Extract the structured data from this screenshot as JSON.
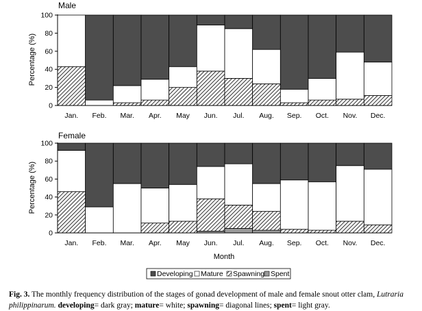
{
  "chart_data": [
    {
      "type": "bar",
      "stacked": true,
      "title": "Male",
      "xlabel": "",
      "ylabel": "Percentage (%)",
      "ylim": [
        0,
        100
      ],
      "yticks": [
        0,
        20,
        40,
        60,
        80,
        100
      ],
      "grid": false,
      "categories": [
        "Jan.",
        "Feb.",
        "Mar.",
        "Apr.",
        "May",
        "Jun.",
        "Jul.",
        "Aug.",
        "Sep.",
        "Oct.",
        "Nov.",
        "Dec."
      ],
      "series": [
        {
          "name": "Spent",
          "values": [
            0,
            0,
            0,
            0,
            0,
            0,
            0,
            0,
            0,
            0,
            0,
            0
          ]
        },
        {
          "name": "Spawning",
          "values": [
            43,
            0,
            3,
            6,
            20,
            38,
            30,
            24,
            3,
            6,
            7,
            11
          ]
        },
        {
          "name": "Mature",
          "values": [
            57,
            6,
            19,
            23,
            23,
            51,
            55,
            38,
            15,
            24,
            52,
            37
          ]
        },
        {
          "name": "Developing",
          "values": [
            0,
            94,
            78,
            71,
            57,
            11,
            15,
            38,
            82,
            70,
            41,
            52
          ]
        }
      ]
    },
    {
      "type": "bar",
      "stacked": true,
      "title": "Female",
      "xlabel": "Month",
      "ylabel": "Percentage (%)",
      "ylim": [
        0,
        100
      ],
      "yticks": [
        0,
        20,
        40,
        60,
        80,
        100
      ],
      "grid": false,
      "categories": [
        "Jan.",
        "Feb.",
        "Mar.",
        "Apr.",
        "May",
        "Jun.",
        "Jul.",
        "Aug.",
        "Sep.",
        "Oct.",
        "Nov.",
        "Dec."
      ],
      "series": [
        {
          "name": "Spent",
          "values": [
            0,
            0,
            0,
            0,
            0,
            2,
            5,
            3,
            0,
            0,
            0,
            0
          ]
        },
        {
          "name": "Spawning",
          "values": [
            46,
            0,
            0,
            11,
            13,
            36,
            26,
            21,
            4,
            3,
            13,
            9
          ]
        },
        {
          "name": "Mature",
          "values": [
            46,
            29,
            55,
            39,
            41,
            36,
            46,
            31,
            55,
            54,
            62,
            62
          ]
        },
        {
          "name": "Developing",
          "values": [
            8,
            71,
            45,
            50,
            46,
            26,
            23,
            45,
            41,
            43,
            25,
            29
          ]
        }
      ]
    }
  ],
  "legend": {
    "placement": "bottom-center",
    "items": [
      {
        "label": "Developing",
        "style": "dark-gray"
      },
      {
        "label": "Mature",
        "style": "white"
      },
      {
        "label": "Spawning",
        "style": "diagonal-lines"
      },
      {
        "label": "Spent",
        "style": "light-gray"
      }
    ]
  },
  "colors": {
    "developing": "#4d4d4d",
    "mature": "#ffffff",
    "spawning_lines": "#000000",
    "spent": "#9a9a9a",
    "outline": "#000000"
  },
  "caption": {
    "label": "Fig. 3.",
    "text1": " The monthly frequency distribution of the stages of gonad development of male and female snout otter clam, ",
    "species": "Lutraria philippinarum.",
    "t_dev": "developing",
    "t_dev_desc": "= dark gray; ",
    "t_mat": "mature",
    "t_mat_desc": "= white; ",
    "t_spa": "spawning",
    "t_spa_desc": "= diagonal lines; ",
    "t_spe": "spent",
    "t_spe_desc": "= light gray."
  }
}
